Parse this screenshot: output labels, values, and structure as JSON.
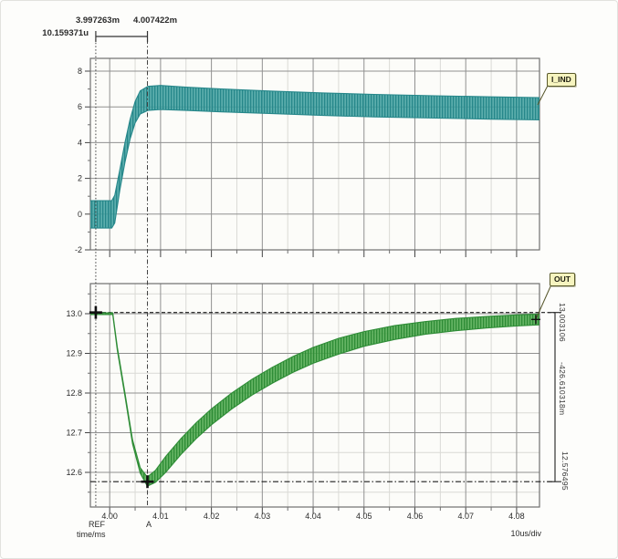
{
  "app": {
    "name": "transient-analysis-waveforms"
  },
  "header": {
    "cursor_t1": "3.997263m",
    "cursor_t2": "4.007422m",
    "cursor_dt": "10.159371u"
  },
  "signal_labels": {
    "top": "I_IND",
    "bottom": "OUT"
  },
  "measurements": {
    "top_value": "13.003106",
    "delta_value": "-426.610318m",
    "bottom_value": "12.576495"
  },
  "axis_captions": {
    "ref": "REF",
    "time_unit": "time/ms",
    "cursor_a": "A",
    "per_div": "10us/div"
  },
  "cursors": {
    "ref_time_ms": 3.997263,
    "a_time_ms": 4.007422
  },
  "colors": {
    "trace_top": "#3fa0a0",
    "trace_top_dark": "#26878a",
    "trace_bottom": "#4aa74a",
    "trace_bottom_dark": "#2e8c36",
    "grid_major": "#909090",
    "grid_minor": "#dadad6",
    "plot_border": "#6f6f6f",
    "cursor_line": "#3f3f3f",
    "measure_line": "#1d1d1d",
    "plot_bg": "#fcfcf9",
    "label_box_bg": "#f6f4bf",
    "label_box_border": "#59592a",
    "text": "#2b2b2b"
  },
  "chart_data": [
    {
      "type": "area",
      "name": "I_IND",
      "title": "Inductor current ripple band",
      "x_unit": "time/ms",
      "xlim": [
        3.9962,
        4.0845
      ],
      "ylim": [
        -2,
        8.714
      ],
      "xtick_labels": [
        "4.00",
        "4.01",
        "4.02",
        "4.03",
        "4.04",
        "4.05",
        "4.06",
        "4.07",
        "4.08"
      ],
      "ytick_labels": [
        "8",
        "6",
        "4",
        "2",
        "0",
        "-2"
      ],
      "x_minor_step": 0.005,
      "y_minor_step": 1,
      "y_minor_grid": false,
      "grid": true,
      "band_x": [
        3.9962,
        4.0004,
        4.001,
        4.002,
        4.003,
        4.004,
        4.005,
        4.006,
        4.0075,
        4.01,
        4.015,
        4.022,
        4.032,
        4.042,
        4.052,
        4.064,
        4.075,
        4.0845
      ],
      "band_top": [
        0.75,
        0.75,
        1.05,
        2.5,
        4.0,
        5.3,
        6.3,
        6.9,
        7.15,
        7.2,
        7.1,
        7.0,
        6.88,
        6.78,
        6.7,
        6.62,
        6.56,
        6.52
      ],
      "band_bottom": [
        -0.78,
        -0.78,
        -0.5,
        1.35,
        2.9,
        4.2,
        5.1,
        5.6,
        5.8,
        5.85,
        5.8,
        5.72,
        5.62,
        5.52,
        5.44,
        5.37,
        5.31,
        5.27
      ]
    },
    {
      "type": "area",
      "name": "OUT",
      "title": "Output voltage transient response",
      "x_unit": "time/ms",
      "xlim": [
        3.9962,
        4.0845
      ],
      "ylim": [
        12.5126,
        13.0759
      ],
      "xtick_labels": [
        "4.00",
        "4.01",
        "4.02",
        "4.03",
        "4.04",
        "4.05",
        "4.06",
        "4.07",
        "4.08"
      ],
      "ytick_labels": [
        "13.0",
        "12.9",
        "12.8",
        "12.7",
        "12.6"
      ],
      "x_minor_step": 0.005,
      "y_minor_step": 0.05,
      "y_minor_grid": true,
      "grid": true,
      "ref_level": 13.0031,
      "min_level": 12.5765,
      "band_x": [
        3.9962,
        4.0006,
        4.0015,
        4.003,
        4.0045,
        4.006,
        4.0074,
        4.009,
        4.011,
        4.014,
        4.017,
        4.02,
        4.024,
        4.028,
        4.032,
        4.036,
        4.04,
        4.045,
        4.05,
        4.056,
        4.062,
        4.068,
        4.074,
        4.08,
        4.0845
      ],
      "band_top": [
        13.002,
        13.002,
        12.916,
        12.8,
        12.682,
        12.612,
        12.588,
        12.605,
        12.64,
        12.685,
        12.725,
        12.76,
        12.8,
        12.835,
        12.865,
        12.892,
        12.915,
        12.938,
        12.955,
        12.97,
        12.98,
        12.988,
        12.993,
        12.997,
        12.999
      ],
      "band_bottom": [
        12.998,
        12.998,
        12.908,
        12.792,
        12.672,
        12.598,
        12.565,
        12.575,
        12.6,
        12.645,
        12.685,
        12.72,
        12.76,
        12.795,
        12.825,
        12.852,
        12.875,
        12.898,
        12.918,
        12.935,
        12.948,
        12.957,
        12.964,
        12.969,
        12.972
      ]
    }
  ]
}
